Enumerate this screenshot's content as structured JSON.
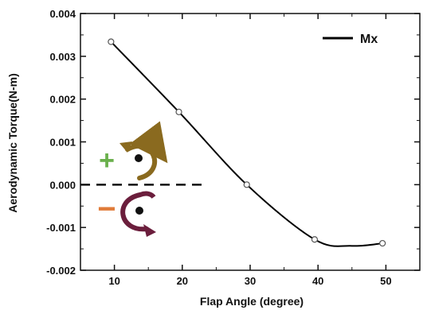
{
  "chart_data": {
    "type": "line",
    "xlabel": "Flap Angle (degree)",
    "ylabel": "Aerodynamic Torque(N-m)",
    "xlim": [
      5,
      55
    ],
    "ylim": [
      -0.002,
      0.004
    ],
    "xticks": [
      "10",
      "20",
      "30",
      "40",
      "50"
    ],
    "yticks": [
      "-0.002",
      "-0.001",
      "0.000",
      "0.001",
      "0.002",
      "0.003",
      "0.004"
    ],
    "legend_position": "top-right",
    "series": [
      {
        "name": "Mx",
        "color": "#000000",
        "x": [
          9.5,
          19.5,
          29.5,
          39.5,
          49.5
        ],
        "y": [
          0.00334,
          0.0017,
          0.0,
          -0.00128,
          -0.00137
        ],
        "curve_peak_min": {
          "x": 45,
          "y": -0.00143
        }
      }
    ],
    "annotations": {
      "zero_line": {
        "style": "dashed",
        "y": 0.0
      },
      "positive_sign": {
        "text": "+",
        "color": "#6ab04c",
        "icon": "counterclockwise-arrow-eye-icon",
        "arrow_color": "#8a6a1f"
      },
      "negative_sign": {
        "text": "−",
        "color": "#e07b39",
        "icon": "clockwise-arrow-eye-icon",
        "arrow_color": "#6b1e3c"
      }
    }
  }
}
